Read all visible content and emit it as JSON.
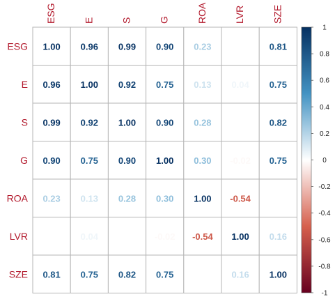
{
  "chart_data": {
    "type": "heatmap",
    "title": "",
    "variables": [
      "ESG",
      "E",
      "S",
      "G",
      "ROA",
      "LVR",
      "SZE"
    ],
    "matrix": [
      [
        1.0,
        0.96,
        0.99,
        0.9,
        0.23,
        0.01,
        0.81
      ],
      [
        0.96,
        1.0,
        0.92,
        0.75,
        0.13,
        0.04,
        0.75
      ],
      [
        0.99,
        0.92,
        1.0,
        0.9,
        0.28,
        0.03,
        0.82
      ],
      [
        0.9,
        0.75,
        0.9,
        1.0,
        0.3,
        -0.02,
        0.75
      ],
      [
        0.23,
        0.13,
        0.28,
        0.3,
        1.0,
        -0.54,
        0.02
      ],
      [
        0.01,
        0.04,
        0.03,
        -0.02,
        -0.54,
        1.0,
        0.16
      ],
      [
        0.81,
        0.75,
        0.82,
        0.75,
        0.02,
        0.16,
        1.0
      ]
    ],
    "cell_labels": [
      [
        "1.00",
        "0.96",
        "0.99",
        "0.90",
        "0.23",
        "",
        "0.81"
      ],
      [
        "0.96",
        "1.00",
        "0.92",
        "0.75",
        "0.13",
        "0.04",
        "0.75"
      ],
      [
        "0.99",
        "0.92",
        "1.00",
        "0.90",
        "0.28",
        "",
        "0.82"
      ],
      [
        "0.90",
        "0.75",
        "0.90",
        "1.00",
        "0.30",
        "-0.02",
        "0.75"
      ],
      [
        "0.23",
        "0.13",
        "0.28",
        "0.30",
        "1.00",
        "-0.54",
        ""
      ],
      [
        "",
        "0.04",
        "",
        "-0.02",
        "-0.54",
        "1.00",
        "0.16"
      ],
      [
        "0.81",
        "0.75",
        "0.82",
        "0.75",
        "",
        "0.16",
        "1.00"
      ]
    ],
    "colorbar": {
      "range": [
        -1,
        1
      ],
      "ticks": [
        1,
        0.8,
        0.6,
        0.4,
        0.2,
        0,
        -0.2,
        -0.4,
        -0.6,
        -0.8,
        -1
      ],
      "tick_labels": [
        "1",
        "0.8",
        "0.6",
        "0.4",
        "0.2",
        "0",
        "-0.2",
        "-0.4",
        "-0.6",
        "-0.8",
        "-1"
      ]
    },
    "colors": {
      "negative": "#67001F",
      "neg_mid": "#D6604D",
      "neutral": "#FFFFFF",
      "pos_mid": "#4393C3",
      "positive": "#053061",
      "label_text": "#B2182B",
      "grid": "#B5B5B5"
    },
    "grid": true,
    "legend": "right"
  }
}
